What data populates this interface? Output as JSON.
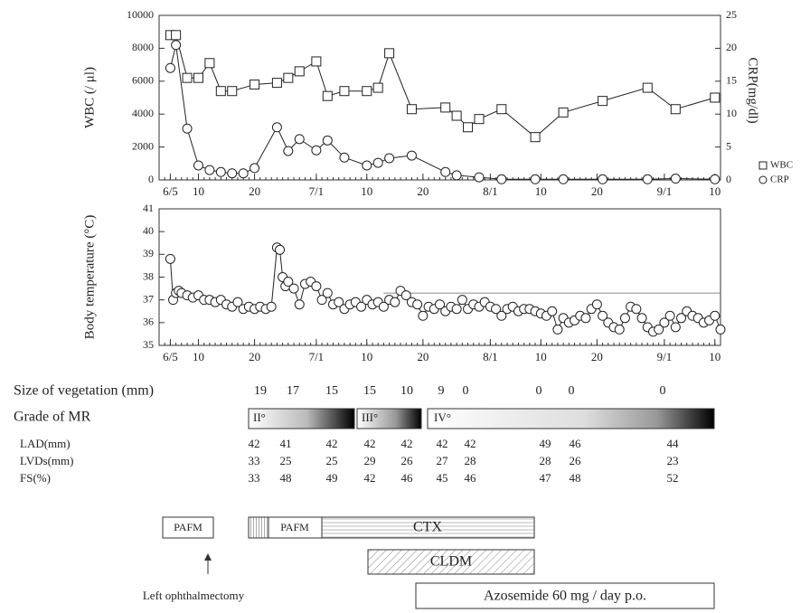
{
  "chart_data": [
    {
      "type": "line",
      "ylabel": "WBC (/ μl)",
      "y2label": "CRP(mg/dl)",
      "legend": "right",
      "xlim": [
        -2,
        98
      ],
      "xticks": [
        {
          "value": 0,
          "label": "6/5"
        },
        {
          "value": 5,
          "label": "10"
        },
        {
          "value": 15,
          "label": "20"
        },
        {
          "value": 26,
          "label": "7/1"
        },
        {
          "value": 35,
          "label": "10"
        },
        {
          "value": 45,
          "label": "20"
        },
        {
          "value": 57,
          "label": "8/1"
        },
        {
          "value": 66,
          "label": "10"
        },
        {
          "value": 76,
          "label": "20"
        },
        {
          "value": 88,
          "label": "9/1"
        },
        {
          "value": 97,
          "label": "10"
        }
      ],
      "ylim": [
        0,
        10000
      ],
      "yticks": [
        0,
        2000,
        4000,
        6000,
        8000,
        10000
      ],
      "y2lim": [
        0,
        25
      ],
      "y2ticks": [
        0,
        5,
        10,
        15,
        20,
        25
      ],
      "series": [
        {
          "name": "WBC",
          "marker": "square",
          "color": "#222",
          "x": [
            0,
            1,
            3,
            5,
            7,
            9,
            11,
            15,
            19,
            21,
            23,
            26,
            28,
            31,
            35,
            37,
            39,
            43,
            49,
            51,
            53,
            55,
            59,
            65,
            70,
            77,
            85,
            90,
            97
          ],
          "values": [
            8800,
            8800,
            6200,
            6200,
            7100,
            5400,
            5400,
            5800,
            5900,
            6200,
            6600,
            7200,
            5100,
            5400,
            5400,
            5600,
            7700,
            4300,
            4400,
            3900,
            3200,
            3700,
            4300,
            2600,
            4100,
            4800,
            5600,
            4300,
            5000
          ]
        },
        {
          "name": "CRP",
          "marker": "circle",
          "color": "#222",
          "axis": "y2",
          "x": [
            0,
            1,
            3,
            5,
            7,
            9,
            11,
            13,
            15,
            19,
            21,
            23,
            26,
            28,
            31,
            35,
            37,
            39,
            43,
            49,
            51,
            55,
            59,
            65,
            70,
            77,
            85,
            90,
            97
          ],
          "values": [
            17,
            20.5,
            7.8,
            2.2,
            1.5,
            1.2,
            1,
            1,
            1.8,
            8,
            4.4,
            6.2,
            4.5,
            6,
            3.4,
            2.2,
            2.6,
            3.3,
            3.7,
            1.2,
            0.7,
            0.4,
            0.1,
            0.1,
            0.1,
            0.1,
            0.1,
            0.2,
            0.1
          ]
        }
      ]
    },
    {
      "type": "line",
      "ylabel": "Body temperature (°C)",
      "xlim": [
        -2,
        98
      ],
      "xticks": [
        {
          "value": 0,
          "label": "6/5"
        },
        {
          "value": 5,
          "label": "10"
        },
        {
          "value": 15,
          "label": "20"
        },
        {
          "value": 26,
          "label": "7/1"
        },
        {
          "value": 35,
          "label": "10"
        },
        {
          "value": 45,
          "label": "20"
        },
        {
          "value": 57,
          "label": "8/1"
        },
        {
          "value": 66,
          "label": "10"
        },
        {
          "value": 76,
          "label": "20"
        },
        {
          "value": 88,
          "label": "9/1"
        },
        {
          "value": 97,
          "label": "10"
        }
      ],
      "ylim": [
        35,
        41
      ],
      "yticks": [
        35,
        36,
        37,
        38,
        39,
        40,
        41
      ],
      "reference_line": 37.3,
      "series": [
        {
          "marker": "circle",
          "color": "#222",
          "x": [
            0,
            0.5,
            1,
            1.5,
            2,
            3,
            4,
            5,
            6,
            7,
            8,
            9,
            10,
            11,
            12,
            13,
            14,
            15,
            16,
            17,
            18,
            19,
            19.5,
            20,
            20.5,
            21,
            22,
            23,
            24,
            25,
            26,
            27,
            28,
            29,
            30,
            31,
            32,
            33,
            34,
            35,
            36,
            37,
            38,
            39,
            40,
            41,
            42,
            43,
            44,
            45,
            46,
            47,
            48,
            49,
            50,
            51,
            52,
            53,
            54,
            55,
            56,
            57,
            58,
            59,
            60,
            61,
            62,
            63,
            64,
            65,
            66,
            67,
            68,
            69,
            70,
            71,
            72,
            73,
            74,
            75,
            76,
            77,
            78,
            79,
            80,
            81,
            82,
            83,
            84,
            85,
            86,
            87,
            88,
            89,
            90,
            91,
            92,
            93,
            94,
            95,
            96,
            97,
            98
          ],
          "values": [
            38.8,
            37.0,
            37.3,
            37.4,
            37.3,
            37.2,
            37.1,
            37.2,
            37.0,
            37.0,
            36.9,
            37.0,
            36.8,
            36.7,
            36.9,
            36.6,
            36.7,
            36.6,
            36.7,
            36.6,
            36.7,
            39.3,
            39.2,
            38.0,
            37.6,
            37.8,
            37.5,
            36.8,
            37.7,
            37.8,
            37.6,
            37.0,
            37.3,
            36.8,
            36.9,
            36.6,
            36.8,
            36.9,
            36.7,
            37.0,
            36.8,
            36.9,
            36.7,
            37.0,
            36.9,
            37.4,
            37.2,
            36.9,
            36.8,
            36.3,
            36.7,
            36.6,
            36.8,
            36.5,
            36.7,
            36.6,
            37.0,
            36.6,
            36.8,
            36.7,
            36.9,
            36.7,
            36.6,
            36.3,
            36.6,
            36.7,
            36.5,
            36.6,
            36.6,
            36.5,
            36.4,
            36.3,
            36.5,
            35.7,
            36.2,
            36.0,
            36.1,
            36.3,
            36.2,
            36.6,
            36.8,
            36.3,
            36.0,
            35.8,
            35.7,
            36.2,
            36.7,
            36.6,
            36.2,
            35.8,
            35.6,
            35.7,
            36.0,
            36.3,
            35.8,
            36.2,
            36.5,
            36.3,
            36.2,
            36.0,
            36.1,
            36.3,
            35.7
          ]
        }
      ]
    }
  ],
  "table": {
    "rows": [
      {
        "label": "Size of vegetation (mm)",
        "values": [
          19,
          17,
          15,
          15,
          10,
          9,
          0,
          0,
          0,
          0
        ]
      },
      {
        "label": "LAD(mm)",
        "values": [
          42,
          41,
          42,
          42,
          42,
          42,
          42,
          49,
          46,
          44
        ]
      },
      {
        "label": "LVDs(mm)",
        "values": [
          33,
          25,
          25,
          29,
          26,
          27,
          28,
          28,
          26,
          23
        ]
      },
      {
        "label": "FS(%)",
        "values": [
          33,
          48,
          49,
          42,
          46,
          45,
          46,
          47,
          48,
          52
        ]
      }
    ]
  },
  "mr": {
    "label": "Grade of MR",
    "grades": [
      "II°",
      "III°",
      "IV°"
    ]
  },
  "treatments": [
    "PAFM",
    "PAFM",
    "CTX",
    "CLDM",
    "Azosemide 60 mg / day p.o."
  ],
  "annotation": "Left ophthalmectomy"
}
